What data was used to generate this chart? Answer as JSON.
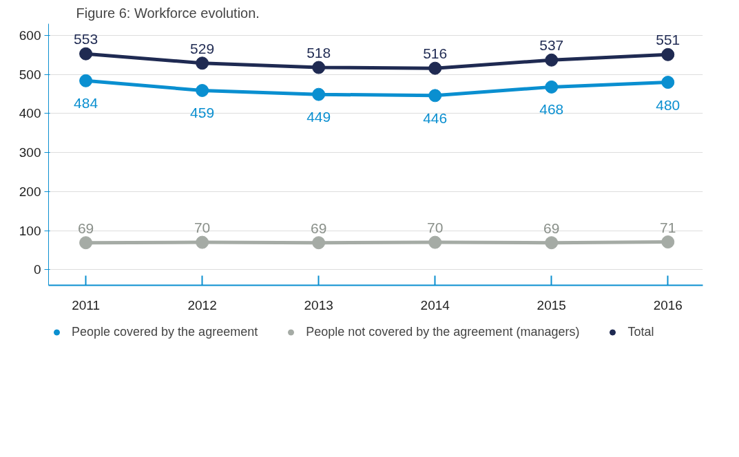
{
  "chart_data": {
    "type": "line",
    "title": "Figure 6: Workforce evolution.",
    "categories": [
      "2011",
      "2012",
      "2013",
      "2014",
      "2015",
      "2016"
    ],
    "series": [
      {
        "name": "People covered by the agreement",
        "color": "#0a8fd0",
        "values": [
          484,
          459,
          449,
          446,
          468,
          480
        ]
      },
      {
        "name": "People not covered by the agreement (managers)",
        "color": "#a5aba5",
        "values": [
          69,
          70,
          69,
          70,
          69,
          71
        ]
      },
      {
        "name": "Total",
        "color": "#1f2a52",
        "values": [
          553,
          529,
          518,
          516,
          537,
          551
        ]
      }
    ],
    "ylim": [
      -40,
      630
    ],
    "yticks": [
      0,
      100,
      200,
      300,
      400,
      500,
      600
    ],
    "grid": "y",
    "legend": "bottom",
    "marker": "circle",
    "line_style": "solid",
    "data_labels": true
  }
}
